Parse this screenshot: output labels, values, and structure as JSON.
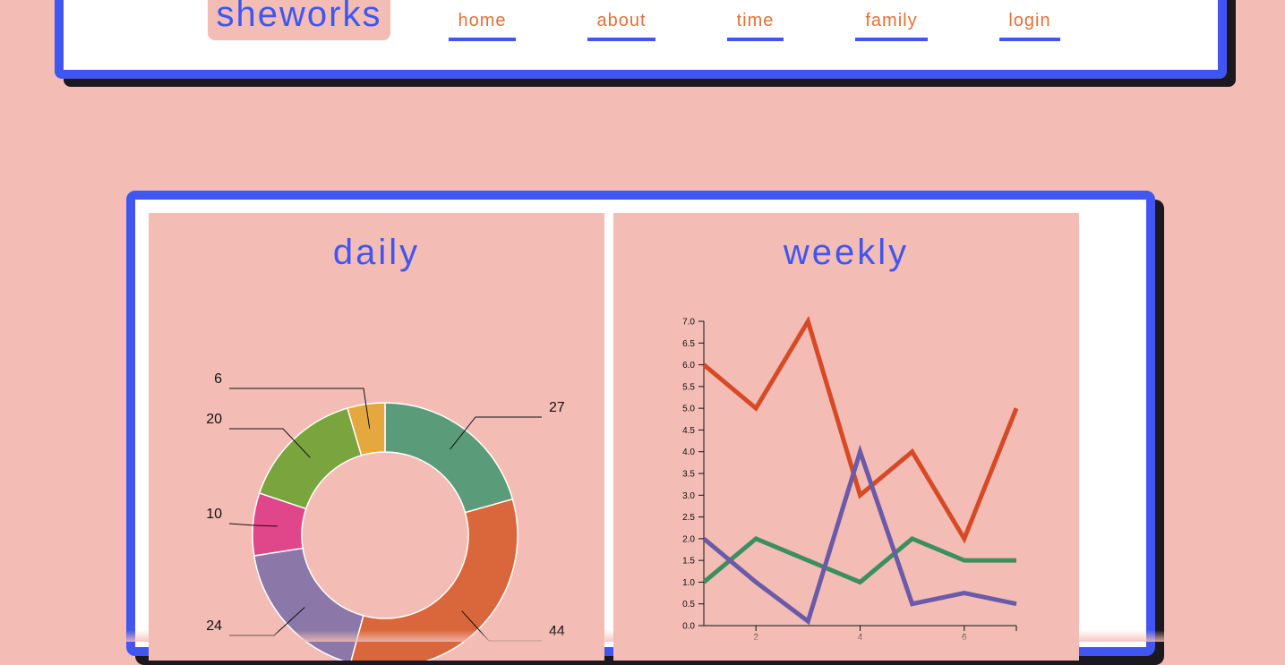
{
  "header": {
    "logo": "sheworks",
    "nav": [
      {
        "label": "home"
      },
      {
        "label": "about"
      },
      {
        "label": "time"
      },
      {
        "label": "family"
      },
      {
        "label": "login"
      }
    ]
  },
  "panels": {
    "daily_title": "daily",
    "weekly_title": "weekly"
  },
  "chart_data": [
    {
      "type": "pie",
      "variant": "donut",
      "values": [
        27,
        44,
        24,
        10,
        20,
        6
      ],
      "labels": [
        "27",
        "44",
        "24",
        "10",
        "20",
        "6"
      ],
      "colors": [
        "#5a9b7a",
        "#da673b",
        "#8b78a8",
        "#e0468a",
        "#7aa53e",
        "#e5a83e"
      ]
    },
    {
      "type": "line",
      "x": [
        1,
        2,
        3,
        4,
        5,
        6,
        7
      ],
      "xticks": [
        "2",
        "4",
        "6"
      ],
      "ylim": [
        0,
        7
      ],
      "yticks": [
        "0.0",
        "0.5",
        "1.0",
        "1.5",
        "2.0",
        "2.5",
        "3.0",
        "3.5",
        "4.0",
        "4.5",
        "5.0",
        "5.5",
        "6.0",
        "6.5",
        "7.0"
      ],
      "series": [
        {
          "values": [
            6,
            5,
            7,
            3,
            4,
            2,
            5
          ],
          "color": "#d64a26"
        },
        {
          "values": [
            1,
            2,
            1.5,
            1,
            2,
            1.5,
            1.5
          ],
          "color": "#3b8f5f"
        },
        {
          "values": [
            2,
            1,
            0.1,
            4,
            0.5,
            0.75,
            0.5
          ],
          "color": "#6b5aa8"
        }
      ]
    }
  ]
}
